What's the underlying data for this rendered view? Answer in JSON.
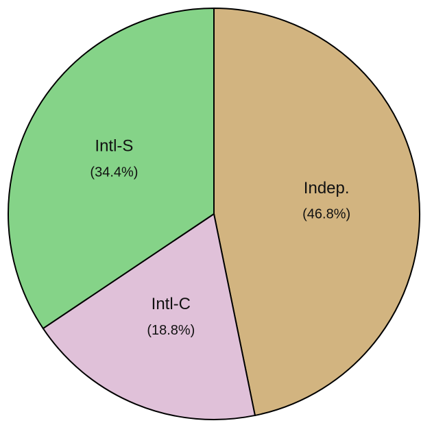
{
  "chart_data": {
    "type": "pie",
    "categories": [
      "Indep.",
      "Intl-C",
      "Intl-S"
    ],
    "values": [
      46.8,
      18.8,
      34.4
    ],
    "value_labels": [
      "(46.8%)",
      "(18.8%)",
      "(34.4%)"
    ],
    "colors": [
      "#d2b480",
      "#e0c1d9",
      "#85d388"
    ]
  }
}
